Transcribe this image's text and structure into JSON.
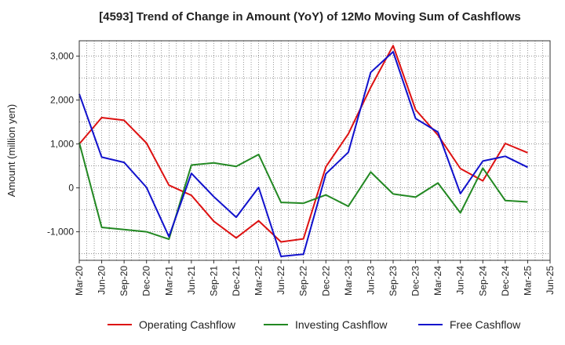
{
  "chart_data": {
    "type": "line",
    "title": "[4593]  Trend of Change in Amount (YoY) of 12Mo Moving Sum of Cashflows",
    "xlabel": "",
    "ylabel": "Amount (million yen)",
    "ylim": [
      -1650,
      3350
    ],
    "yticks": [
      3000,
      2000,
      1000,
      0,
      -1000
    ],
    "ytick_labels": [
      "3,000",
      "2,000",
      "1,000",
      "0",
      "-1,000"
    ],
    "grid": true,
    "legend_position": "bottom",
    "categories": [
      "Mar-20",
      "Jun-20",
      "Sep-20",
      "Dec-20",
      "Mar-21",
      "Jun-21",
      "Sep-21",
      "Dec-21",
      "Mar-22",
      "Jun-22",
      "Sep-22",
      "Dec-22",
      "Mar-23",
      "Jun-23",
      "Sep-23",
      "Dec-23",
      "Mar-24",
      "Jun-24",
      "Sep-24",
      "Dec-24",
      "Mar-25",
      "Jun-25"
    ],
    "series": [
      {
        "name": "Operating Cashflow",
        "color": "#dd1111",
        "values": [
          1000,
          1600,
          1540,
          1020,
          60,
          -170,
          -760,
          -1140,
          -750,
          -1230,
          -1160,
          480,
          1230,
          2290,
          3240,
          1780,
          1200,
          440,
          160,
          1010,
          800,
          null
        ]
      },
      {
        "name": "Investing Cashflow",
        "color": "#228822",
        "values": [
          1030,
          -900,
          -950,
          -1000,
          -1170,
          520,
          570,
          490,
          760,
          -330,
          -350,
          -160,
          -420,
          360,
          -140,
          -210,
          110,
          -570,
          450,
          -290,
          -320,
          null
        ]
      },
      {
        "name": "Free Cashflow",
        "color": "#1111cc",
        "values": [
          2140,
          700,
          580,
          10,
          -1110,
          330,
          -200,
          -670,
          10,
          -1560,
          -1510,
          320,
          810,
          2630,
          3100,
          1580,
          1270,
          -130,
          610,
          720,
          470,
          null
        ]
      }
    ]
  }
}
